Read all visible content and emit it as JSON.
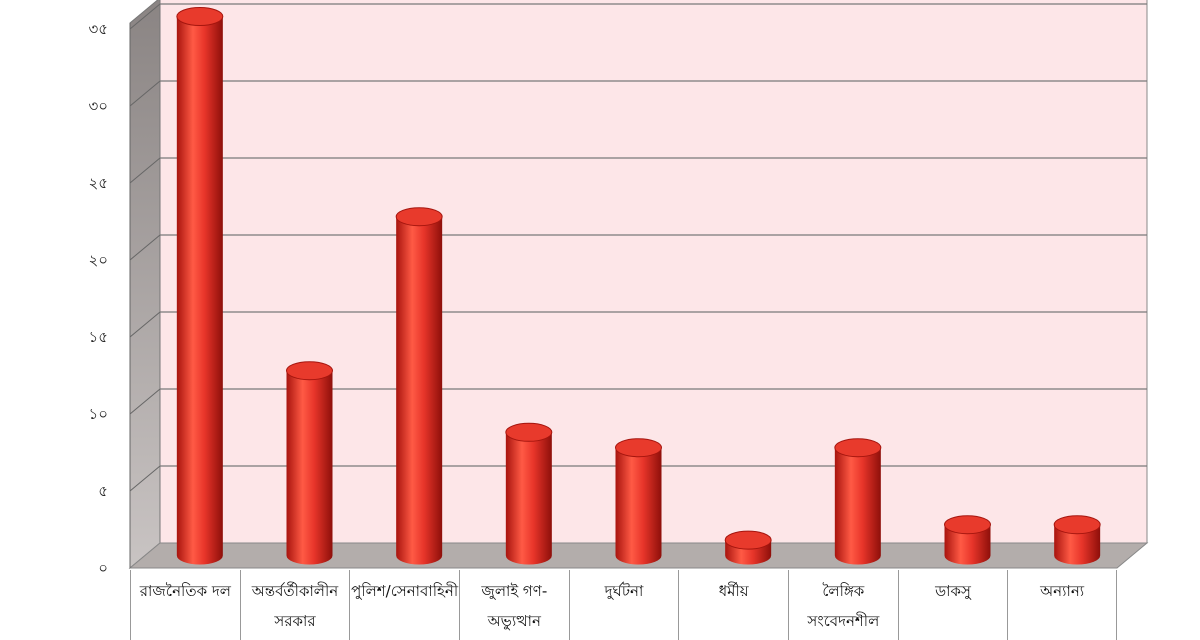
{
  "chart_data": {
    "type": "bar",
    "style": "3d-cylinder",
    "categories": [
      "রাজনৈতিক দল",
      "অন্তর্বর্তীকালীন সরকার",
      "পুলিশ/সেনাবাহিনী",
      "জুলাই গণ-অভ্যুত্থান",
      "দুর্ঘটনা",
      "ধর্মীয়",
      "লৈঙ্গিক সংবেদনশীল",
      "ডাকসু",
      "অন্যান্য"
    ],
    "values": [
      35,
      12,
      22,
      8,
      7,
      1,
      7,
      2,
      2
    ],
    "ylim": [
      0,
      35
    ],
    "yticks": [
      0,
      5,
      10,
      15,
      20,
      25,
      30,
      35
    ],
    "ytick_labels": [
      "০",
      "৫",
      "১০",
      "১৫",
      "২০",
      "২৫",
      "৩০",
      "৩৫"
    ],
    "grid": true,
    "colors": {
      "bar": "#e8352a",
      "wall": "#fde6e8",
      "side_wall": "#a39d9c",
      "floor": "#b3adab"
    }
  }
}
